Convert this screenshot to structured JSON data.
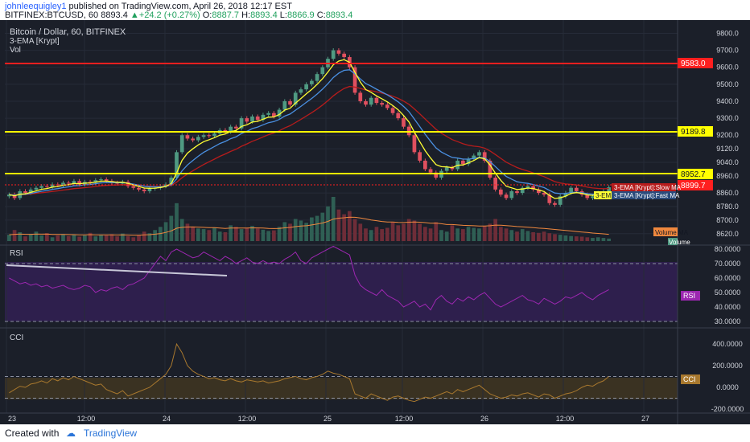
{
  "header": {
    "username": "johnleequigley1",
    "published_text": " published on TradingView.com, April 26, 2018 12:17 EST",
    "symbol": "BITFINEX:BTCUSD, 60",
    "last": "8893.4",
    "arrow": "▲",
    "change": "+24.2 (+0.27%)",
    "o_label": "O:",
    "o": "8887.7",
    "h_label": "H:",
    "h": "8893.4",
    "l_label": "L:",
    "l": "8866.9",
    "c_label": "C:",
    "c": "8893.4"
  },
  "legend": {
    "title": "Bitcoin / Dollar, 60, BITFINEX",
    "ema": "3-EMA [Krypt]",
    "vol": "Vol"
  },
  "price_axis": {
    "ticks": [
      "9800.0",
      "9700.0",
      "9600.0",
      "9500.0",
      "9400.0",
      "9300.0",
      "9200.0",
      "9120.0",
      "9040.0",
      "8960.0",
      "8860.0",
      "8780.0",
      "8700.0",
      "8620.0"
    ],
    "ylim": [
      8600,
      9840
    ]
  },
  "price_labels": {
    "red_line": "9583.0",
    "yellow_line_1": "9189.8",
    "yellow_line_2": "8952.7",
    "current": "8899.7"
  },
  "overlay_labels": {
    "slow_ma": "3-EMA [Krypt]:Slow MA",
    "fast_ma": "3-EMA [Krypt]:Fast MA",
    "third": "3-EM",
    "volume_ma": "Volume MA",
    "volume": "Volume"
  },
  "rsi": {
    "title": "RSI",
    "ticks": [
      "80.0000",
      "70.0000",
      "60.0000",
      "50.0000",
      "40.0000",
      "30.0000"
    ],
    "badge": "RSI",
    "colors": {
      "line": "#9c27b0",
      "band": "#2e1f4d"
    }
  },
  "cci": {
    "title": "CCI",
    "ticks": [
      "400.0000",
      "200.0000",
      "0.0000",
      "-200.0000"
    ],
    "badge": "CCI",
    "colors": {
      "line": "#a8782e",
      "band": "#3a3222"
    }
  },
  "time_axis": {
    "labels": [
      "23",
      "12:00",
      "24",
      "12:00",
      "25",
      "12:00",
      "26",
      "12:00",
      "27"
    ]
  },
  "footer": {
    "created_with": "Created with",
    "brand": "TradingView",
    "logo_icon": "tradingview-logo-icon"
  },
  "colors": {
    "background": "#1b1f29",
    "up": "#4f9a82",
    "down": "#e0505f",
    "fast_ma": "#ffff33",
    "mid_ma": "#4a90e2",
    "slow_ma": "#b71c1c",
    "red_line": "#ff1f1f",
    "yellow_line": "#ffff00",
    "volume_ma": "#f0883e"
  },
  "chart_data": {
    "type": "candlestick",
    "title": "Bitcoin / Dollar, 60, BITFINEX",
    "closes": [
      8850,
      8830,
      8870,
      8860,
      8880,
      8890,
      8900,
      8895,
      8910,
      8905,
      8920,
      8915,
      8930,
      8910,
      8925,
      8920,
      8935,
      8940,
      8930,
      8920,
      8915,
      8925,
      8900,
      8890,
      8880,
      8870,
      8885,
      8890,
      8900,
      8910,
      8950,
      9100,
      9200,
      9180,
      9170,
      9190,
      9200,
      9195,
      9210,
      9230,
      9220,
      9250,
      9240,
      9300,
      9280,
      9310,
      9290,
      9320,
      9330,
      9310,
      9350,
      9400,
      9380,
      9450,
      9470,
      9500,
      9520,
      9560,
      9600,
      9650,
      9700,
      9680,
      9660,
      9600,
      9450,
      9400,
      9380,
      9420,
      9390,
      9380,
      9360,
      9330,
      9300,
      9250,
      9200,
      9100,
      9050,
      9000,
      8980,
      8950,
      8990,
      9010,
      9000,
      9050,
      9030,
      9060,
      9080,
      9100,
      9050,
      8950,
      8880,
      8850,
      8830,
      8870,
      8860,
      8890,
      8900,
      8880,
      8860,
      8850,
      8800,
      8790,
      8840,
      8860,
      8890,
      8870,
      8850,
      8830,
      8840,
      8860,
      8870,
      8893
    ],
    "volume": [
      20,
      35,
      28,
      15,
      22,
      30,
      18,
      25,
      12,
      18,
      22,
      16,
      20,
      14,
      18,
      26,
      15,
      20,
      18,
      22,
      15,
      24,
      16,
      12,
      20,
      30,
      25,
      35,
      45,
      60,
      80,
      120,
      70,
      55,
      45,
      40,
      38,
      35,
      42,
      30,
      28,
      50,
      45,
      38,
      42,
      48,
      40,
      36,
      32,
      34,
      45,
      60,
      55,
      70,
      65,
      58,
      75,
      80,
      90,
      110,
      140,
      100,
      85,
      95,
      70,
      55,
      40,
      35,
      45,
      38,
      42,
      60,
      50,
      55,
      70,
      65,
      55,
      45,
      40,
      60,
      35,
      30,
      50,
      40,
      38,
      45,
      42,
      40,
      48,
      55,
      70,
      45,
      40,
      35,
      30,
      38,
      32,
      28,
      26,
      30,
      25,
      22,
      20,
      18,
      16,
      15,
      14,
      12,
      10,
      12,
      10,
      8
    ],
    "rsi": [
      60,
      58,
      56,
      57,
      55,
      56,
      54,
      55,
      53,
      54,
      55,
      53,
      52,
      53,
      55,
      54,
      50,
      52,
      51,
      53,
      54,
      52,
      55,
      56,
      58,
      60,
      65,
      70,
      75,
      72,
      78,
      80,
      78,
      76,
      74,
      75,
      78,
      76,
      74,
      72,
      75,
      73,
      70,
      72,
      74,
      71,
      70,
      72,
      70,
      71,
      70,
      73,
      75,
      78,
      72,
      70,
      74,
      76,
      78,
      80,
      82,
      80,
      78,
      76,
      62,
      55,
      52,
      50,
      48,
      52,
      48,
      46,
      44,
      40,
      42,
      44,
      40,
      42,
      38,
      45,
      48,
      44,
      42,
      46,
      44,
      47,
      45,
      48,
      50,
      46,
      42,
      40,
      42,
      44,
      46,
      48,
      45,
      44,
      42,
      46,
      44,
      42,
      44,
      47,
      46,
      48,
      50,
      47,
      45,
      48,
      50,
      52
    ],
    "cci": [
      -50,
      -20,
      10,
      0,
      30,
      40,
      60,
      40,
      80,
      60,
      90,
      70,
      100,
      80,
      60,
      40,
      20,
      30,
      -20,
      -40,
      -60,
      -30,
      -80,
      -60,
      -40,
      -20,
      0,
      40,
      80,
      120,
      200,
      400,
      320,
      200,
      150,
      120,
      100,
      80,
      90,
      70,
      60,
      80,
      60,
      50,
      70,
      60,
      50,
      60,
      40,
      50,
      60,
      80,
      90,
      100,
      80,
      70,
      90,
      100,
      120,
      150,
      130,
      120,
      100,
      80,
      -60,
      -80,
      -100,
      -60,
      -80,
      -100,
      -120,
      -90,
      -80,
      -100,
      -120,
      -130,
      -110,
      -90,
      -100,
      -80,
      -60,
      -40,
      -60,
      -20,
      -40,
      -20,
      0,
      20,
      -20,
      -60,
      -80,
      -100,
      -90,
      -70,
      -80,
      -60,
      -50,
      -70,
      -90,
      -60,
      -70,
      -100,
      -80,
      -60,
      -50,
      -30,
      0,
      20,
      10,
      40,
      60,
      100
    ]
  }
}
